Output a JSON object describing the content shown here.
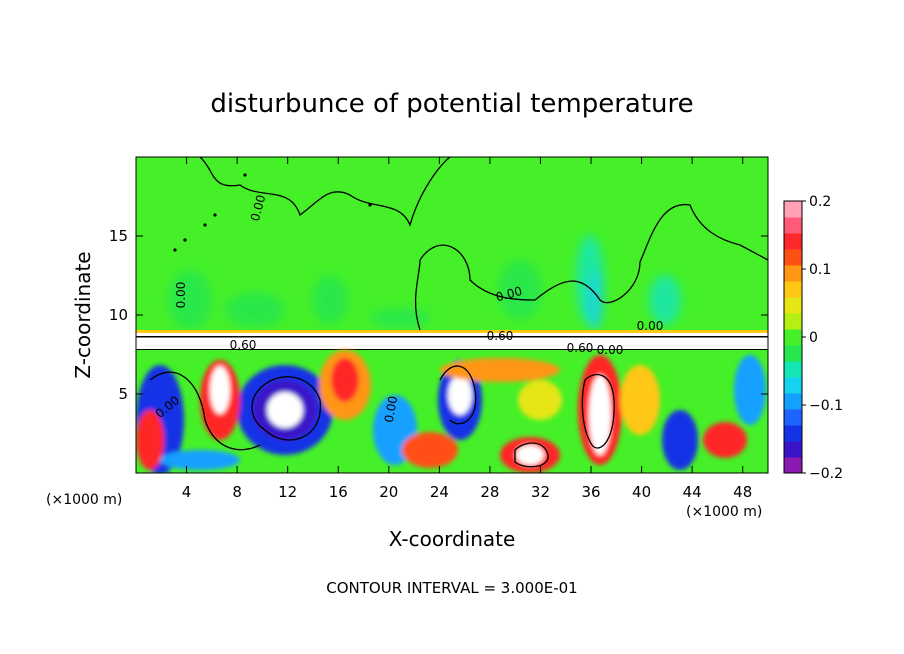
{
  "chart_data": {
    "type": "heatmap",
    "title": "disturbunce of potential temperature",
    "xlabel": "X-coordinate",
    "ylabel": "Z-coordinate",
    "x_unit": "(×1000 m)",
    "z_unit": "(×1000 m)",
    "xlim": [
      0,
      50
    ],
    "ylim": [
      0,
      20
    ],
    "x_ticks": [
      4,
      8,
      12,
      16,
      20,
      24,
      28,
      32,
      36,
      40,
      44,
      48
    ],
    "y_ticks": [
      5,
      10,
      15
    ],
    "colorbar": {
      "range": [
        -0.2,
        0.2
      ],
      "tick_values": [
        -0.2,
        -0.1,
        0,
        0.1,
        0.2
      ],
      "tick_labels": [
        "−0.2",
        "−0.1",
        "0",
        "0.1",
        "0.2"
      ],
      "colors": [
        "#8a1ab0",
        "#3a14c8",
        "#1432e6",
        "#1e64ff",
        "#14a0ff",
        "#14d2f0",
        "#14e6b4",
        "#28e650",
        "#46f028",
        "#b4f014",
        "#e6e614",
        "#ffc814",
        "#ff9614",
        "#ff5014",
        "#ff2828",
        "#ff5a78",
        "#ffa0b4"
      ]
    },
    "contour_labels": [
      "0.00",
      "0.60",
      "0.60",
      "0.00",
      "0.60",
      "0.00",
      "0.00",
      "0.00",
      "0.00",
      "0.00"
    ],
    "footer": "CONTOUR INTERVAL = 3.000E-01",
    "field_summary": {
      "upper_layer_z": [
        9,
        20
      ],
      "upper_layer_value_approx": 0.0,
      "band_z": [
        7.5,
        9
      ],
      "lower_layer_z": [
        0,
        7.5
      ],
      "lower_layer_range": [
        -0.2,
        0.2
      ]
    }
  }
}
